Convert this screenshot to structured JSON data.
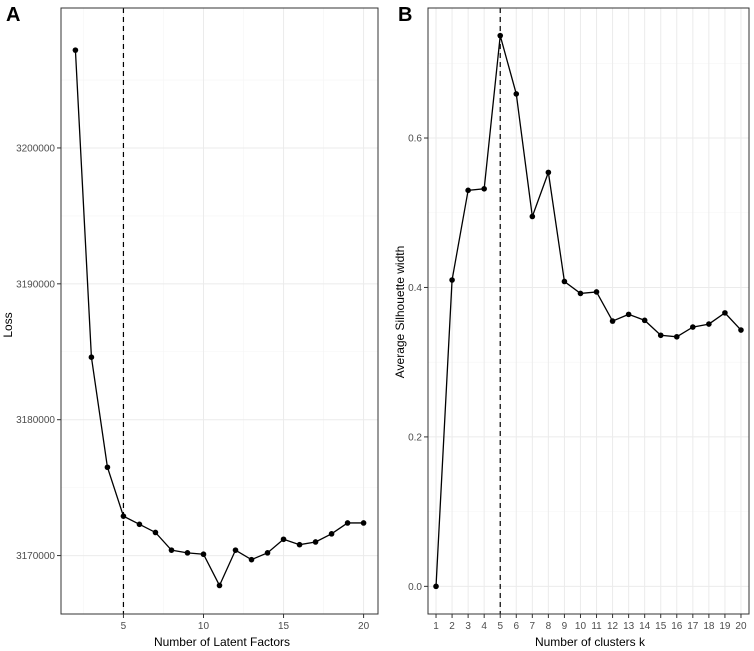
{
  "chart_data": [
    {
      "panel": "A",
      "type": "line",
      "xlabel": "Number of Latent Factors",
      "ylabel": "Loss",
      "xlim": [
        1.1,
        20.9
      ],
      "ylim": [
        3165700,
        3210300
      ],
      "x_ticks": [
        5,
        10,
        15,
        20
      ],
      "y_ticks": [
        3170000,
        3180000,
        3190000,
        3200000
      ],
      "y_tick_labels": [
        "3170000",
        "3180000",
        "3190000",
        "3200000"
      ],
      "grid": true,
      "vline_x": 5,
      "x": [
        2,
        3,
        4,
        5,
        6,
        7,
        8,
        9,
        10,
        11,
        12,
        13,
        14,
        15,
        16,
        17,
        18,
        19,
        20
      ],
      "y": [
        3207200,
        3184600,
        3176500,
        3172900,
        3172300,
        3171700,
        3170400,
        3170200,
        3170100,
        3167800,
        3170400,
        3169700,
        3170200,
        3171200,
        3170800,
        3171000,
        3171600,
        3172400,
        3172400
      ]
    },
    {
      "panel": "B",
      "type": "line",
      "xlabel": "Number of clusters k",
      "ylabel": "Average Silhouette width",
      "xlim": [
        0.5,
        20.5
      ],
      "ylim": [
        -0.037,
        0.774
      ],
      "x_ticks": [
        1,
        2,
        3,
        4,
        5,
        6,
        7,
        8,
        9,
        10,
        11,
        12,
        13,
        14,
        15,
        16,
        17,
        18,
        19,
        20
      ],
      "y_ticks": [
        0.0,
        0.2,
        0.4,
        0.6
      ],
      "y_tick_labels": [
        "0.0",
        "0.2",
        "0.4",
        "0.6"
      ],
      "grid": true,
      "vline_x": 5,
      "x": [
        1,
        2,
        3,
        4,
        5,
        6,
        7,
        8,
        9,
        10,
        11,
        12,
        13,
        14,
        15,
        16,
        17,
        18,
        19,
        20
      ],
      "y": [
        0.0,
        0.41,
        0.53,
        0.532,
        0.737,
        0.659,
        0.495,
        0.554,
        0.408,
        0.392,
        0.394,
        0.355,
        0.364,
        0.356,
        0.336,
        0.334,
        0.347,
        0.351,
        0.366,
        0.343
      ]
    }
  ]
}
